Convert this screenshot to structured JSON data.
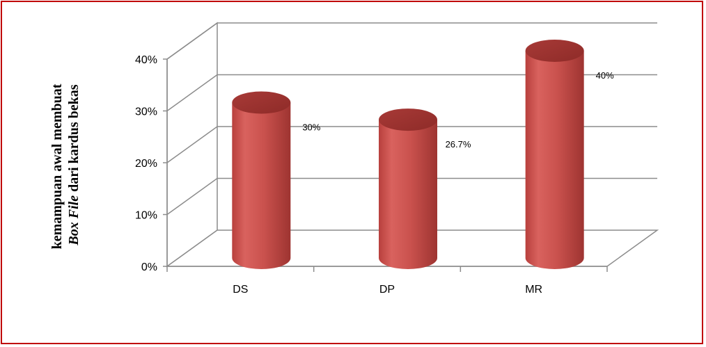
{
  "chart_data": {
    "type": "bar",
    "style": "3d-cylinder",
    "categories": [
      "DS",
      "DP",
      "MR"
    ],
    "values": [
      30,
      26.7,
      40
    ],
    "data_labels": [
      "30%",
      "26.7%",
      "40%"
    ],
    "yticks": [
      "0%",
      "10%",
      "20%",
      "30%",
      "40%"
    ],
    "ylim": [
      0,
      40
    ],
    "ylabel_line1": "kemampuan awal membuat",
    "ylabel_line2_italic": "Box File",
    "ylabel_line2_rest": " dari kardus bekas",
    "grid": true,
    "bar_color": "#c0504d",
    "border_color": "#c00000"
  }
}
